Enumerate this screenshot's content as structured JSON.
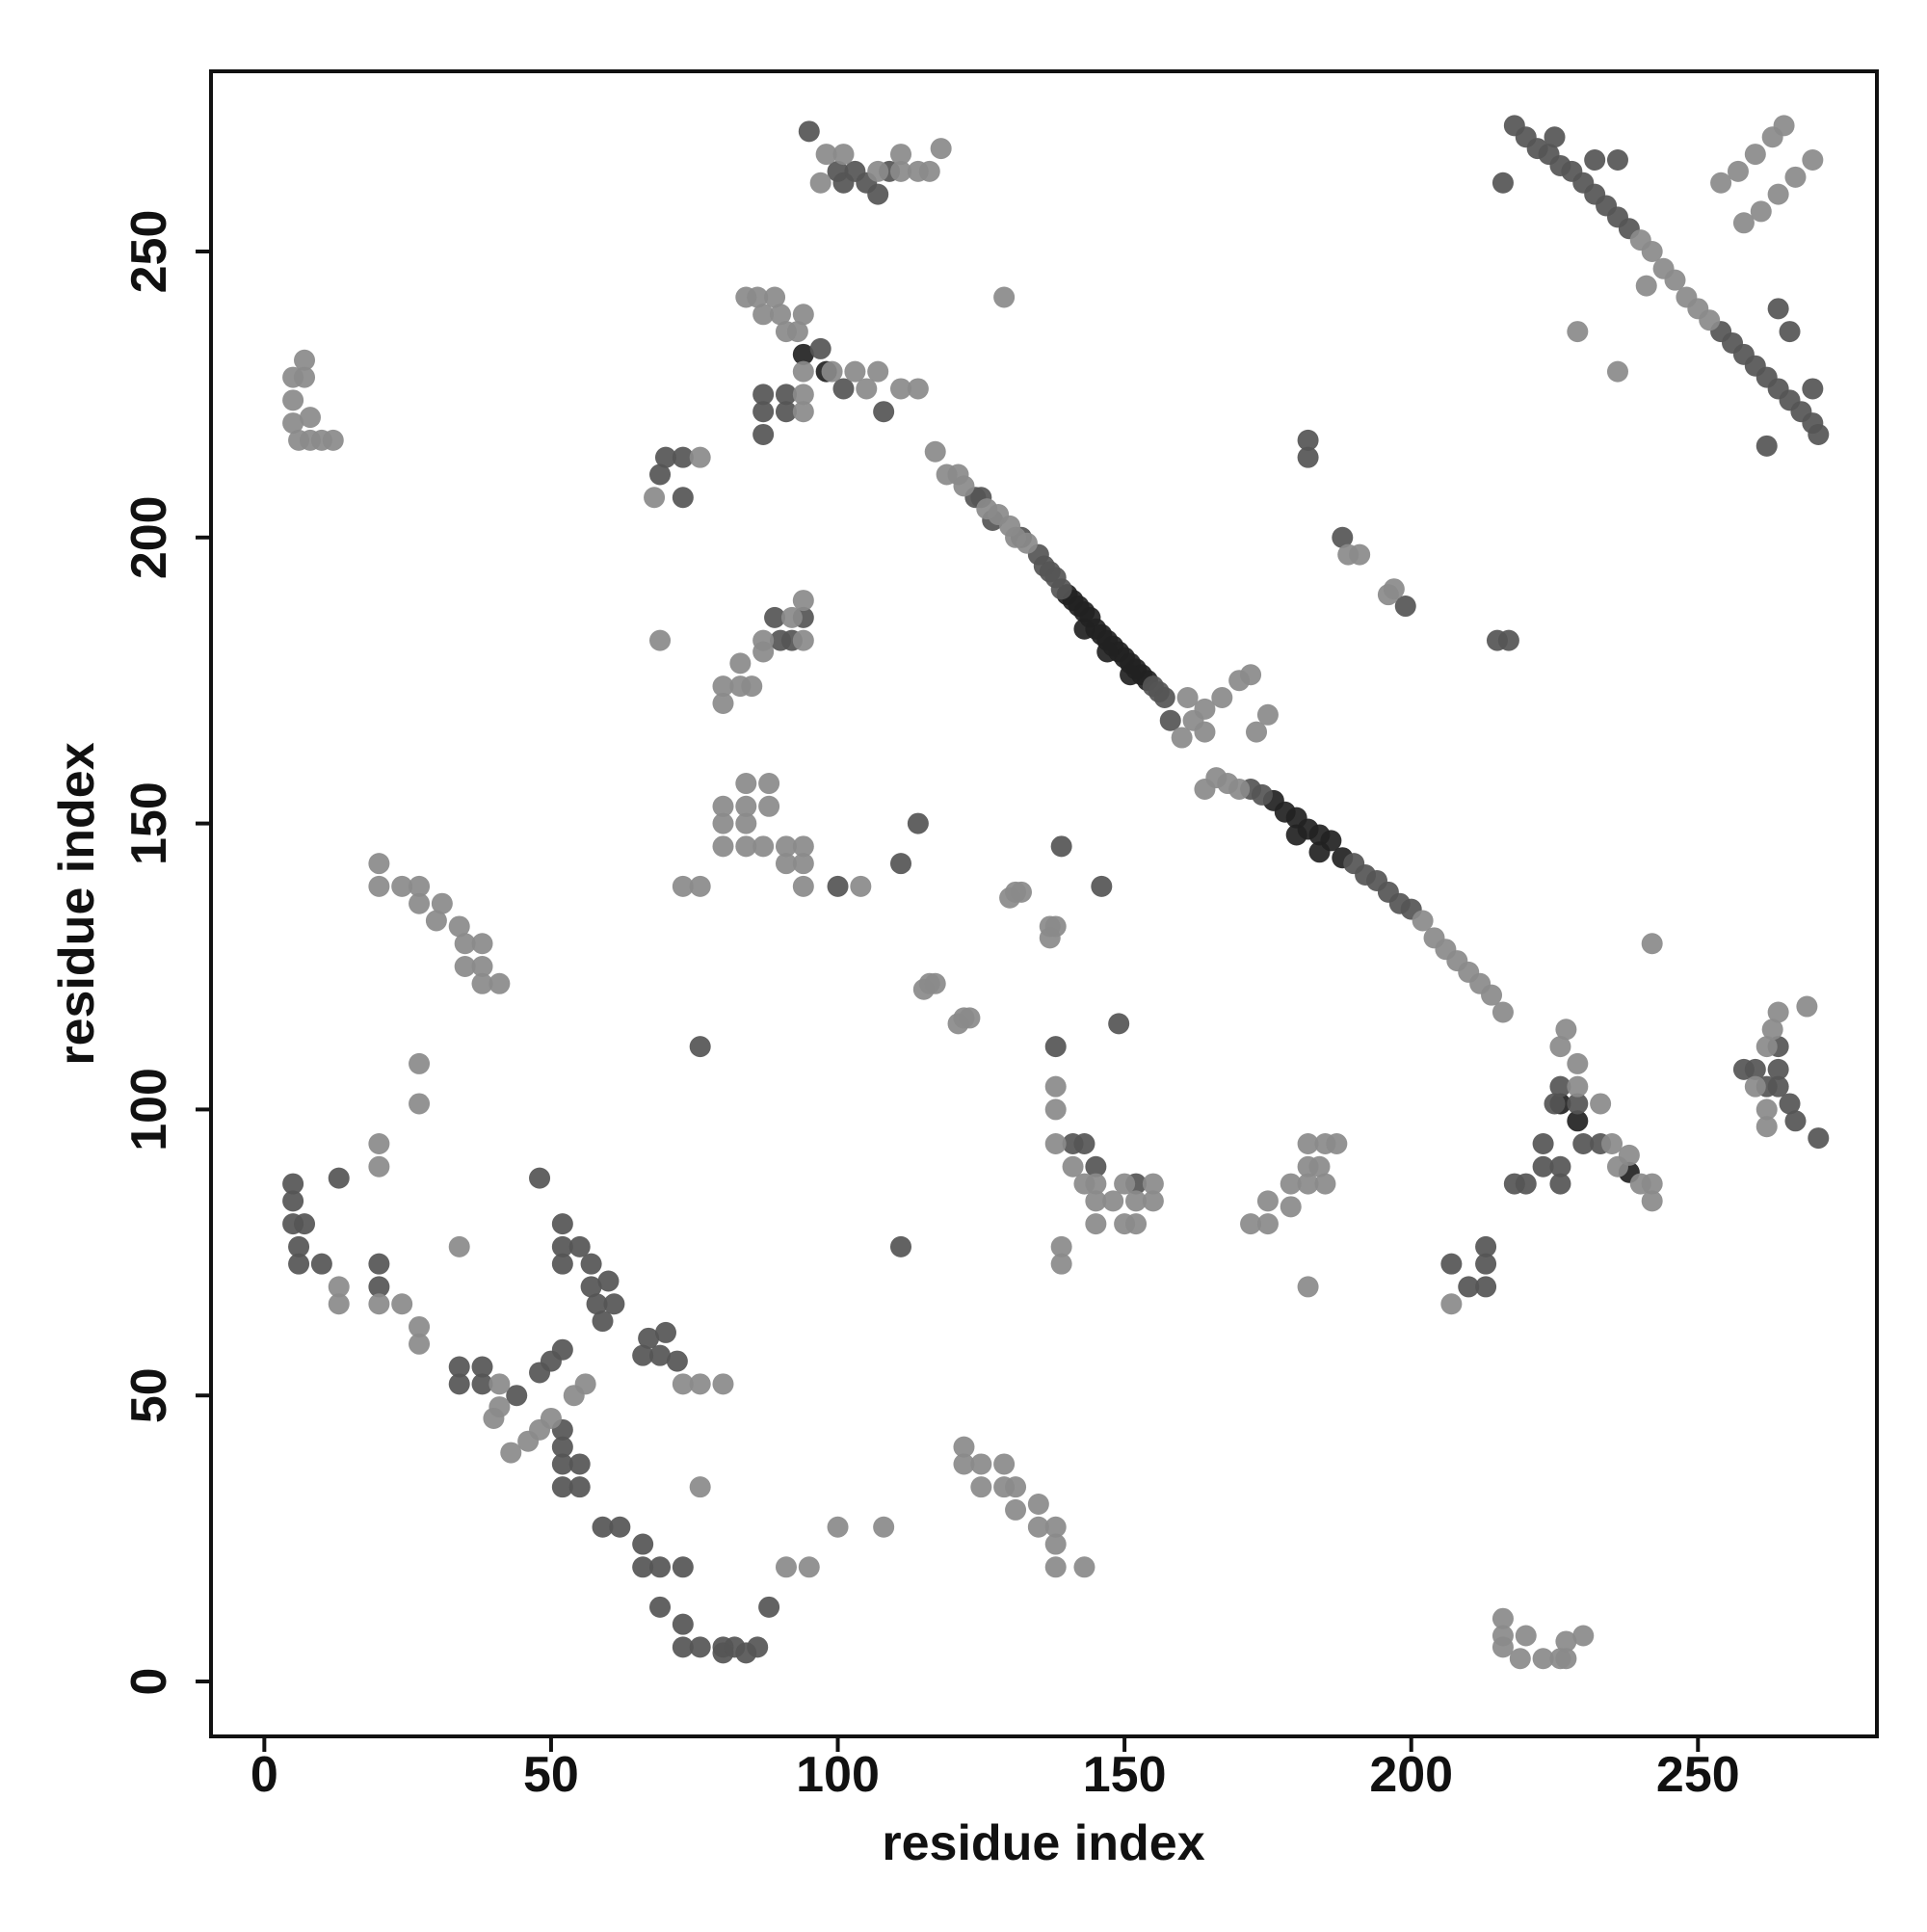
{
  "chart_data": {
    "type": "scatter",
    "xlabel": "residue index",
    "ylabel": "residue index",
    "xlim": [
      -9.3,
      281.2
    ],
    "ylim": [
      -9.6,
      281.5
    ],
    "xticks": [
      0,
      50,
      100,
      150,
      200,
      250
    ],
    "yticks": [
      0,
      50,
      100,
      150,
      200,
      250
    ],
    "grid": false,
    "series": [
      {
        "color": "#222222",
        "x": [
          140,
          141,
          142,
          143,
          144,
          145,
          146,
          147,
          148,
          149,
          150,
          151,
          152,
          153,
          154,
          176,
          178,
          180,
          182,
          184,
          186,
          188,
          143,
          147,
          151,
          180,
          184,
          94,
          98,
          229,
          226,
          238
        ],
        "values": [
          190,
          189,
          188,
          187,
          186,
          184,
          183,
          182,
          181,
          180,
          179,
          178,
          177,
          176,
          175,
          154,
          152,
          151,
          149,
          148,
          147,
          144,
          184,
          180,
          176,
          148,
          145,
          232,
          229,
          98,
          101,
          89
        ]
      },
      {
        "color": "#555555",
        "x": [
          124,
          125,
          127,
          132,
          135,
          136,
          137,
          138,
          139,
          155,
          156,
          157,
          190,
          192,
          194,
          196,
          198,
          200,
          158,
          172,
          174,
          218,
          220,
          222,
          224,
          226,
          228,
          230,
          232,
          234,
          236,
          238,
          254,
          256,
          258,
          260,
          262,
          264,
          266,
          268,
          270,
          271,
          216,
          262,
          225,
          232,
          236,
          266,
          264,
          270,
          5,
          5,
          5,
          7,
          6,
          6,
          10,
          13,
          20,
          20,
          34,
          34,
          38,
          38,
          44,
          48,
          50,
          52,
          52,
          52,
          55,
          52,
          57,
          57,
          58,
          60,
          61,
          59,
          48,
          52,
          52,
          52,
          52,
          55,
          55,
          59,
          62,
          66,
          66,
          69,
          69,
          73,
          73,
          73,
          76,
          80,
          80,
          82,
          84,
          86,
          88,
          66,
          69,
          72,
          70,
          67,
          207,
          213,
          213,
          213,
          210,
          138,
          149,
          111,
          141,
          143,
          145,
          152,
          111,
          114,
          139,
          146,
          100,
          76,
          87,
          87,
          87,
          91,
          91,
          101,
          108,
          97,
          100,
          101,
          103,
          105,
          107,
          109,
          95,
          182,
          182,
          188,
          199,
          215,
          217,
          220,
          218,
          223,
          223,
          226,
          226,
          225,
          226,
          229,
          230,
          233,
          258,
          260,
          262,
          264,
          264,
          264,
          266,
          267,
          271,
          69,
          70,
          73,
          73,
          92,
          89,
          94,
          90
        ],
        "values": [
          207,
          207,
          203,
          200,
          197,
          195,
          194,
          193,
          191,
          174,
          173,
          172,
          143,
          141,
          140,
          138,
          136,
          135,
          168,
          156,
          155,
          272,
          270,
          268,
          267,
          265,
          264,
          262,
          260,
          258,
          256,
          254,
          236,
          234,
          232,
          230,
          228,
          226,
          224,
          222,
          220,
          218,
          262,
          216,
          270,
          266,
          266,
          236,
          240,
          226,
          87,
          84,
          80,
          80,
          76,
          73,
          73,
          88,
          73,
          69,
          55,
          52,
          55,
          52,
          50,
          54,
          56,
          58,
          80,
          76,
          76,
          73,
          73,
          69,
          66,
          70,
          66,
          63,
          88,
          44,
          41,
          38,
          34,
          38,
          34,
          27,
          27,
          24,
          20,
          20,
          13,
          20,
          10,
          6,
          6,
          6,
          5,
          6,
          5,
          6,
          13,
          57,
          57,
          56,
          61,
          60,
          73,
          76,
          73,
          69,
          69,
          111,
          115,
          76,
          94,
          94,
          90,
          87,
          143,
          150,
          146,
          139,
          139,
          111,
          225,
          222,
          218,
          225,
          222,
          226,
          222,
          233,
          264,
          262,
          264,
          262,
          260,
          264,
          271,
          217,
          214,
          200,
          188,
          182,
          182,
          87,
          87,
          94,
          90,
          90,
          87,
          101,
          104,
          101,
          94,
          94,
          107,
          107,
          104,
          111,
          107,
          104,
          101,
          98,
          95,
          211,
          214,
          214,
          207,
          182,
          186,
          186,
          182
        ]
      },
      {
        "color": "#8a8a8a",
        "x": [
          117,
          119,
          121,
          122,
          126,
          128,
          130,
          131,
          133,
          160,
          162,
          164,
          161,
          164,
          167,
          170,
          172,
          166,
          168,
          170,
          164,
          173,
          175,
          202,
          204,
          206,
          208,
          210,
          212,
          214,
          216,
          240,
          242,
          244,
          246,
          248,
          250,
          252,
          241,
          254,
          257,
          260,
          263,
          265,
          258,
          261,
          264,
          267,
          270,
          229,
          236,
          5,
          5,
          5,
          7,
          7,
          8,
          6,
          8,
          10,
          12,
          20,
          20,
          24,
          27,
          27,
          30,
          31,
          34,
          35,
          35,
          38,
          38,
          38,
          41,
          27,
          27,
          20,
          20,
          13,
          13,
          20,
          24,
          27,
          27,
          34,
          41,
          41,
          40,
          43,
          46,
          48,
          50,
          54,
          56,
          76,
          73,
          76,
          80,
          91,
          95,
          100,
          108,
          122,
          122,
          125,
          125,
          129,
          129,
          131,
          131,
          135,
          135,
          138,
          138,
          138,
          143,
          216,
          216,
          216,
          219,
          220,
          223,
          226,
          227,
          227,
          230,
          207,
          182,
          139,
          139,
          138,
          138,
          138,
          141,
          143,
          145,
          145,
          145,
          148,
          150,
          150,
          152,
          152,
          155,
          155,
          172,
          175,
          175,
          179,
          179,
          182,
          182,
          182,
          184,
          185,
          185,
          187,
          104,
          73,
          76,
          80,
          80,
          80,
          84,
          84,
          84,
          84,
          88,
          88,
          87,
          91,
          91,
          94,
          94,
          94,
          80,
          80,
          83,
          85,
          83,
          87,
          87,
          92,
          94,
          94,
          69,
          68,
          76,
          84,
          86,
          87,
          89,
          90,
          91,
          93,
          94,
          94,
          99,
          103,
          105,
          107,
          111,
          114,
          94,
          94,
          129,
          97,
          98,
          101,
          107,
          111,
          111,
          114,
          116,
          118,
          189,
          191,
          196,
          197,
          115,
          116,
          117,
          121,
          122,
          123,
          130,
          131,
          132,
          137,
          137,
          138,
          226,
          227,
          229,
          229,
          235,
          236,
          238,
          240,
          242,
          242,
          233,
          242,
          260,
          262,
          262,
          262,
          263,
          269,
          264
        ],
        "values": [
          215,
          211,
          211,
          209,
          205,
          204,
          202,
          200,
          199,
          165,
          168,
          166,
          172,
          170,
          172,
          175,
          176,
          158,
          157,
          156,
          156,
          166,
          169,
          133,
          130,
          128,
          126,
          124,
          122,
          120,
          117,
          252,
          250,
          247,
          245,
          242,
          240,
          238,
          244,
          262,
          264,
          267,
          270,
          272,
          255,
          257,
          260,
          263,
          266,
          236,
          229,
          228,
          224,
          220,
          231,
          228,
          221,
          217,
          217,
          217,
          217,
          143,
          139,
          139,
          139,
          136,
          133,
          136,
          132,
          129,
          125,
          129,
          125,
          122,
          122,
          108,
          101,
          94,
          90,
          69,
          66,
          66,
          66,
          62,
          59,
          76,
          52,
          48,
          46,
          40,
          42,
          44,
          46,
          50,
          52,
          34,
          52,
          52,
          52,
          20,
          20,
          27,
          27,
          41,
          38,
          38,
          34,
          38,
          34,
          34,
          30,
          31,
          27,
          27,
          24,
          20,
          20,
          11,
          8,
          6,
          4,
          8,
          4,
          4,
          7,
          4,
          8,
          66,
          69,
          76,
          73,
          104,
          100,
          94,
          90,
          87,
          87,
          84,
          80,
          84,
          87,
          80,
          84,
          80,
          87,
          84,
          80,
          80,
          84,
          83,
          87,
          87,
          90,
          94,
          90,
          94,
          87,
          94,
          139,
          139,
          139,
          146,
          150,
          153,
          146,
          150,
          153,
          157,
          153,
          157,
          146,
          146,
          143,
          146,
          143,
          139,
          171,
          174,
          174,
          174,
          178,
          180,
          182,
          186,
          182,
          189,
          182,
          207,
          214,
          242,
          242,
          239,
          242,
          239,
          236,
          236,
          239,
          229,
          229,
          229,
          226,
          229,
          226,
          226,
          225,
          222,
          242,
          262,
          267,
          267,
          264,
          264,
          267,
          264,
          264,
          268,
          197,
          197,
          190,
          191,
          121,
          122,
          122,
          115,
          116,
          116,
          137,
          138,
          138,
          130,
          132,
          132,
          111,
          114,
          104,
          108,
          94,
          90,
          92,
          87,
          87,
          84,
          101,
          129,
          104,
          100,
          97,
          111,
          114,
          118,
          117
        ]
      }
    ]
  }
}
